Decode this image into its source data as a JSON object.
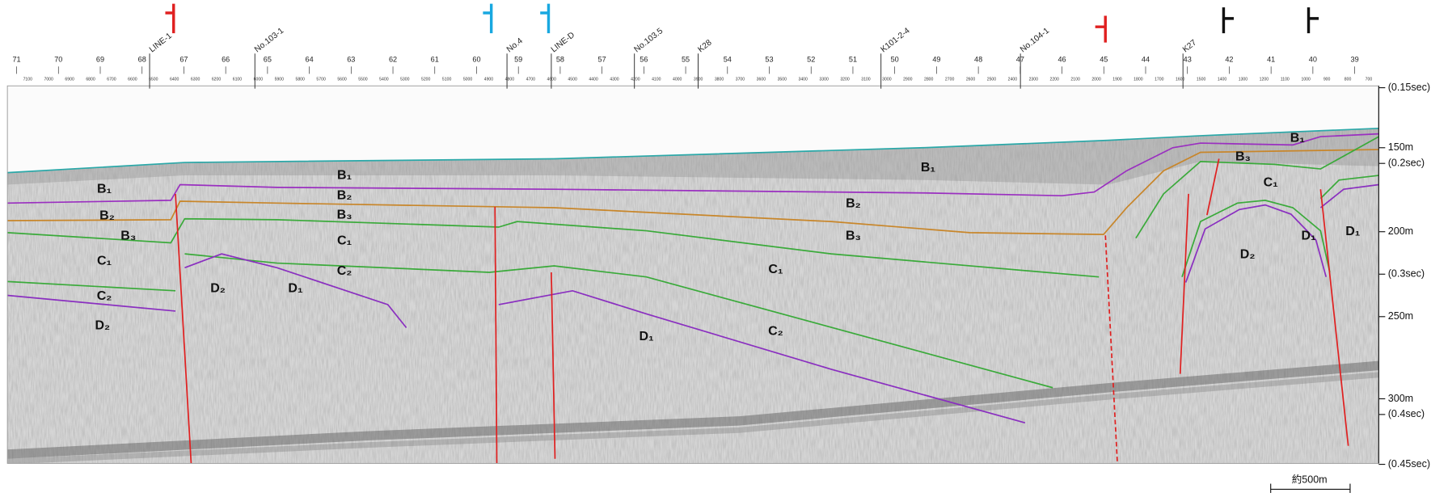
{
  "profile": {
    "survey_lines": [
      "LINE-1",
      "No.103-1",
      "No.4",
      "LINE-D",
      "No.103.5",
      "K28",
      "K101-2-4",
      "No.104-1",
      "K27"
    ],
    "shot_numbers": [
      "71",
      "70",
      "69",
      "68",
      "67",
      "66",
      "65",
      "64",
      "63",
      "62",
      "61",
      "60",
      "59",
      "58",
      "57",
      "56",
      "55",
      "54",
      "53",
      "52",
      "51",
      "50",
      "49",
      "48",
      "47",
      "46",
      "45",
      "44",
      "43",
      "42",
      "41",
      "40",
      "39"
    ],
    "trace_numbers": [
      "7100",
      "7000",
      "6900",
      "6800",
      "6700",
      "6600",
      "6500",
      "6400",
      "6300",
      "6200",
      "6100",
      "6000",
      "5900",
      "5800",
      "5700",
      "5600",
      "5500",
      "5400",
      "5300",
      "5200",
      "5100",
      "5000",
      "4900",
      "4800",
      "4700",
      "4600",
      "4500",
      "4400",
      "4300",
      "4200",
      "4100",
      "4000",
      "3900",
      "3800",
      "3700",
      "3600",
      "3500",
      "3400",
      "3300",
      "3200",
      "3100",
      "3000",
      "2900",
      "2800",
      "2700",
      "2600",
      "2500",
      "2400",
      "2300",
      "2200",
      "2100",
      "2000",
      "1900",
      "1800",
      "1700",
      "1600",
      "1500",
      "1400",
      "1300",
      "1200",
      "1100",
      "1000",
      "900",
      "800",
      "700"
    ],
    "depth_labels": [
      "(0.15sec)",
      "150m",
      "(0.2sec)",
      "200m",
      "(0.3sec)",
      "250m",
      "300m",
      "(0.4sec)",
      "(0.45sec)"
    ],
    "layer_labels": [
      "B₁",
      "B₂",
      "B₃",
      "C₁",
      "C₂",
      "D₂",
      "B₁",
      "B₂",
      "B₃",
      "C₁",
      "C₂",
      "D₂",
      "D₁",
      "C₁",
      "D₁",
      "C₂",
      "B₁",
      "B₂",
      "B₃",
      "B₁",
      "B₃",
      "C₁",
      "D₂",
      "D₁",
      "D₁"
    ],
    "scale_label": "約500m"
  }
}
